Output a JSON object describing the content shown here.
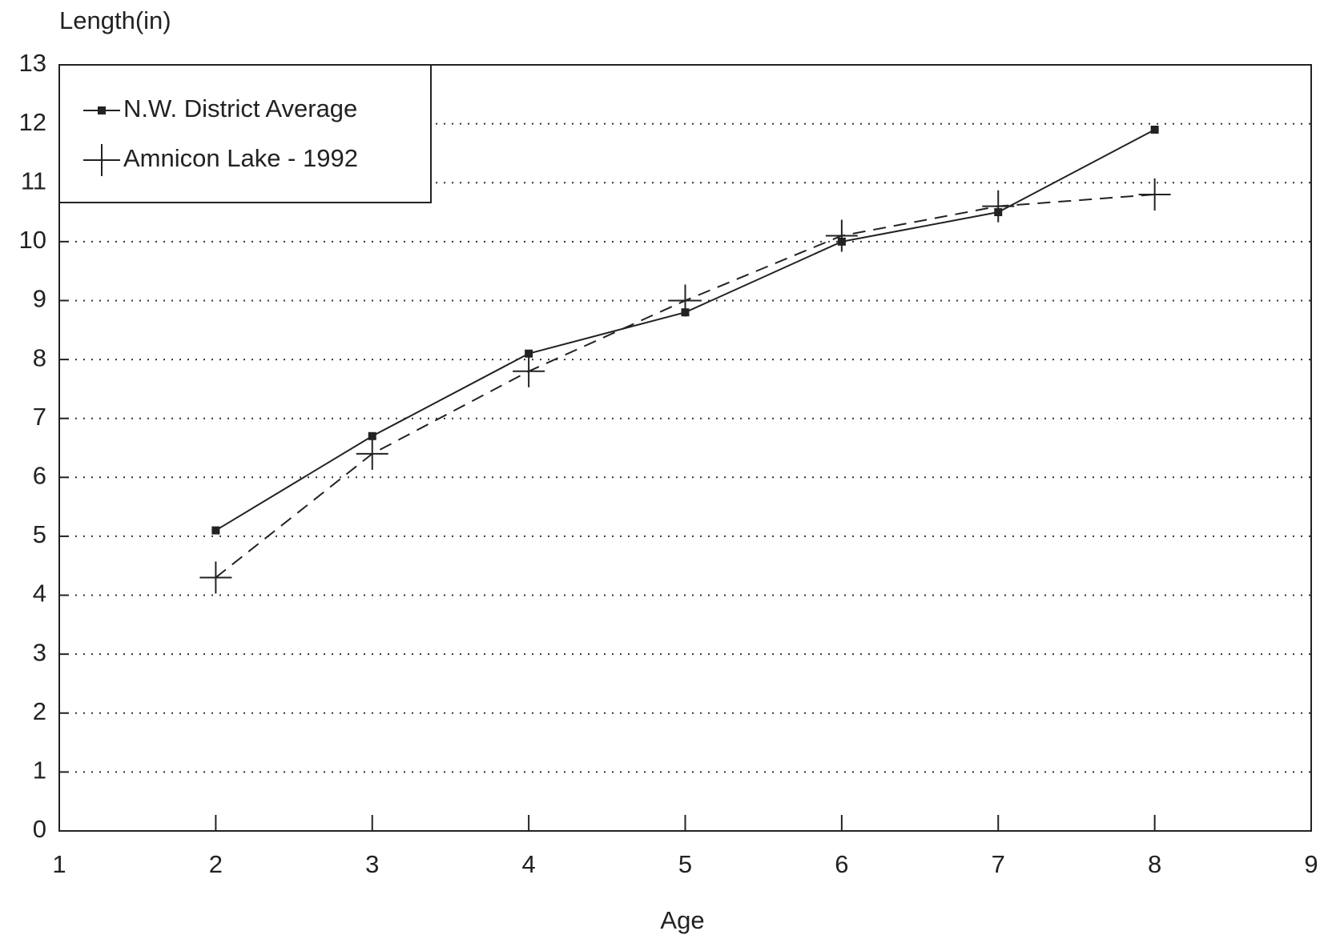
{
  "chart_data": {
    "type": "line",
    "y_label": "Length(in)",
    "x_label": "Age",
    "x": [
      2,
      3,
      4,
      5,
      6,
      7,
      8
    ],
    "series": [
      {
        "name": "N.W. District Average",
        "color": "#222222",
        "style": "solid",
        "marker": "square",
        "values": [
          5.1,
          6.7,
          8.1,
          8.8,
          10.0,
          10.5,
          11.9
        ]
      },
      {
        "name": "Amnicon Lake - 1992",
        "color": "#222222",
        "style": "dashed",
        "marker": "plus",
        "values": [
          4.3,
          6.4,
          7.8,
          9.0,
          10.1,
          10.6,
          10.8
        ]
      }
    ],
    "xlim": [
      1,
      9
    ],
    "xticks": [
      1,
      2,
      3,
      4,
      5,
      6,
      7,
      8,
      9
    ],
    "ylim": [
      0,
      13
    ],
    "yticks": [
      0,
      1,
      2,
      3,
      4,
      5,
      6,
      7,
      8,
      9,
      10,
      11,
      12,
      13
    ],
    "grid": true,
    "legend": "upper-left"
  }
}
